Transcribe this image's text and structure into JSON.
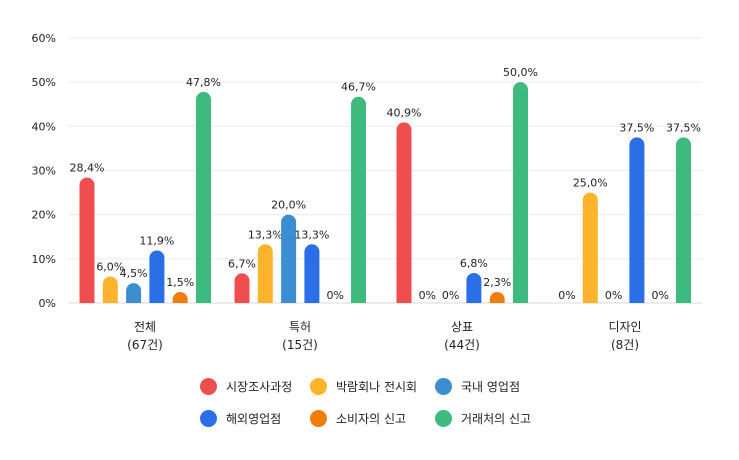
{
  "chart_data": {
    "type": "bar",
    "categories": [
      "전체",
      "특허",
      "상표",
      "디자인"
    ],
    "category_counts": [
      "(67건)",
      "(15건)",
      "(44건)",
      "(8건)"
    ],
    "ylim": [
      0,
      60
    ],
    "yticks": [
      0,
      10,
      20,
      30,
      40,
      50,
      60
    ],
    "ytick_labels": [
      "0%",
      "10%",
      "20%",
      "30%",
      "40%",
      "50%",
      "60%"
    ],
    "grid": true,
    "legend_position": "bottom",
    "series": [
      {
        "name": "시장조사과정",
        "color": "#f04e4e",
        "values": [
          28.4,
          6.7,
          40.9,
          0
        ],
        "labels": [
          "28,4%",
          "6,7%",
          "40,9%",
          "0%"
        ]
      },
      {
        "name": "박람회나 전시회",
        "color": "#fdb32a",
        "values": [
          6.0,
          13.3,
          0,
          25.0
        ],
        "labels": [
          "6,0%",
          "13,3%",
          "0%",
          "25,0%"
        ]
      },
      {
        "name": "국내 영업점",
        "color": "#3b8fd0",
        "values": [
          4.5,
          20.0,
          0,
          0
        ],
        "labels": [
          "4,5%",
          "20,0%",
          "0%",
          "0%"
        ]
      },
      {
        "name": "해외영업점",
        "color": "#2a6fe8",
        "values": [
          11.9,
          13.3,
          6.8,
          37.5
        ],
        "labels": [
          "11,9%",
          "13,3%",
          "6,8%",
          "37,5%"
        ]
      },
      {
        "name": "소비자의 신고",
        "color": "#f07d0a",
        "values": [
          1.5,
          0,
          2.3,
          0
        ],
        "labels": [
          "1,5%",
          "0%",
          "2,3%",
          "0%"
        ]
      },
      {
        "name": "거래처의 신고",
        "color": "#3dbb7e",
        "values": [
          47.8,
          46.7,
          50.0,
          37.5
        ],
        "labels": [
          "47,8%",
          "46,7%",
          "50,0%",
          "37,5%"
        ]
      }
    ]
  }
}
